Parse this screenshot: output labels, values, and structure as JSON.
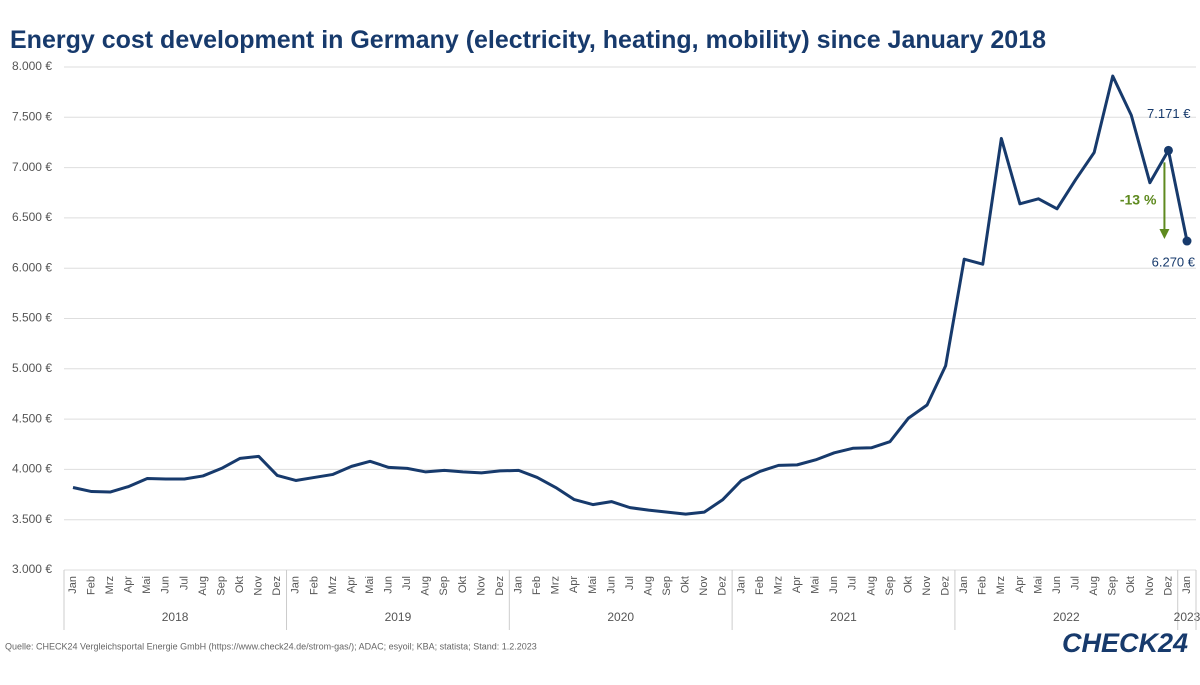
{
  "chart_data": {
    "type": "line",
    "title": "Energy cost development in Germany (electricity, heating, mobility) since January 2018",
    "source": "Quelle: CHECK24 Vergleichsportal Energie GmbH (https://www.check24.de/strom-gas/); ADAC; esyoil; KBA; statista; Stand: 1.2.2023",
    "logo": "CHECK24",
    "categories": [
      "Jan",
      "Feb",
      "Mrz",
      "Apr",
      "Mai",
      "Jun",
      "Jul",
      "Aug",
      "Sep",
      "Okt",
      "Nov",
      "Dez",
      "Jan",
      "Feb",
      "Mrz",
      "Apr",
      "Mai",
      "Jun",
      "Jul",
      "Aug",
      "Sep",
      "Okt",
      "Nov",
      "Dez",
      "Jan",
      "Feb",
      "Mrz",
      "Apr",
      "Mai",
      "Jun",
      "Jul",
      "Aug",
      "Sep",
      "Okt",
      "Nov",
      "Dez",
      "Jan",
      "Feb",
      "Mrz",
      "Apr",
      "Mai",
      "Jun",
      "Jul",
      "Aug",
      "Sep",
      "Okt",
      "Nov",
      "Dez",
      "Jan",
      "Feb",
      "Mrz",
      "Apr",
      "Mai",
      "Jun",
      "Jul",
      "Aug",
      "Sep",
      "Okt",
      "Nov",
      "Dez",
      "Jan"
    ],
    "years": [
      "2018",
      "2019",
      "2020",
      "2021",
      "2022",
      "2023"
    ],
    "values": [
      3820,
      3780,
      3775,
      3830,
      3910,
      3905,
      3905,
      3935,
      4010,
      4110,
      4130,
      3940,
      3890,
      3920,
      3950,
      4030,
      4080,
      4020,
      4010,
      3975,
      3990,
      3975,
      3965,
      3985,
      3990,
      3920,
      3820,
      3700,
      3650,
      3680,
      3620,
      3595,
      3575,
      3555,
      3575,
      3700,
      3890,
      3980,
      4040,
      4045,
      4095,
      4165,
      4210,
      4215,
      4275,
      4510,
      4640,
      5030,
      6090,
      6040,
      7290,
      6640,
      6690,
      6590,
      6880,
      7150,
      7910,
      7520,
      6850,
      7171,
      6270
    ],
    "value_labels": [
      null,
      null,
      null,
      null,
      null,
      null,
      null,
      null,
      null,
      null,
      null,
      null,
      null,
      null,
      null,
      null,
      null,
      null,
      null,
      null,
      null,
      null,
      null,
      null,
      null,
      null,
      null,
      null,
      null,
      null,
      null,
      null,
      null,
      null,
      null,
      null,
      null,
      null,
      null,
      null,
      null,
      null,
      null,
      null,
      null,
      null,
      null,
      null,
      null,
      null,
      null,
      null,
      null,
      null,
      null,
      null,
      null,
      null,
      null,
      "7.171 €",
      "6.270 €"
    ],
    "annotation": "-13 %",
    "color": "#173a6c",
    "arrow_color": "#5e8a1f",
    "ylim": [
      3000,
      8000
    ],
    "yticks": [
      {
        "value": 3000,
        "label": "3.000 €"
      },
      {
        "value": 3500,
        "label": "3.500 €"
      },
      {
        "value": 4000,
        "label": "4.000 €"
      },
      {
        "value": 4500,
        "label": "4.500 €"
      },
      {
        "value": 5000,
        "label": "5.000 €"
      },
      {
        "value": 5500,
        "label": "5.500 €"
      },
      {
        "value": 6000,
        "label": "6.000 €"
      },
      {
        "value": 6500,
        "label": "6.500 €"
      },
      {
        "value": 7000,
        "label": "7.000 €"
      },
      {
        "value": 7500,
        "label": "7.500 €"
      },
      {
        "value": 8000,
        "label": "8.000 €"
      }
    ],
    "grid": true
  }
}
